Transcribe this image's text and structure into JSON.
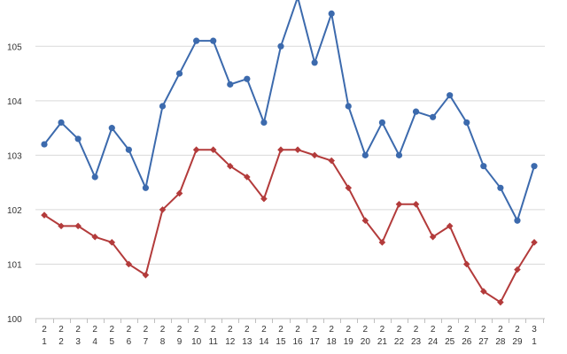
{
  "chart_data": {
    "type": "line",
    "x": [
      "2\n1",
      "2\n2",
      "2\n3",
      "2\n4",
      "2\n5",
      "2\n6",
      "2\n7",
      "2\n8",
      "2\n9",
      "2\n10",
      "2\n11",
      "2\n12",
      "2\n13",
      "2\n14",
      "2\n15",
      "2\n16",
      "2\n17",
      "2\n18",
      "2\n19",
      "2\n20",
      "2\n21",
      "2\n22",
      "2\n23",
      "2\n24",
      "2\n25",
      "2\n26",
      "2\n27",
      "2\n28",
      "2\n29",
      "3\n1"
    ],
    "ylim": [
      100,
      105.85
    ],
    "y_ticks": [
      100,
      101,
      102,
      103,
      104,
      105
    ],
    "grid": true,
    "legend": "none",
    "series": [
      {
        "color": "#3c6aad",
        "marker": "circle",
        "values": [
          103.2,
          103.6,
          103.3,
          102.6,
          103.5,
          103.1,
          102.4,
          103.9,
          104.5,
          105.1,
          105.1,
          104.3,
          104.4,
          103.6,
          105.0,
          105.9,
          104.7,
          105.6,
          103.9,
          103.0,
          103.6,
          103.0,
          103.8,
          103.7,
          104.1,
          103.6,
          102.8,
          102.4,
          101.8,
          102.8
        ]
      },
      {
        "color": "#b33b3b",
        "marker": "diamond",
        "values": [
          101.9,
          101.7,
          101.7,
          101.5,
          101.4,
          101.0,
          100.8,
          102.0,
          102.3,
          103.1,
          103.1,
          102.8,
          102.6,
          102.2,
          103.1,
          103.1,
          103.0,
          102.9,
          102.4,
          101.8,
          101.4,
          102.1,
          102.1,
          101.5,
          101.7,
          101.0,
          100.5,
          100.3,
          100.9,
          101.4
        ]
      }
    ]
  }
}
